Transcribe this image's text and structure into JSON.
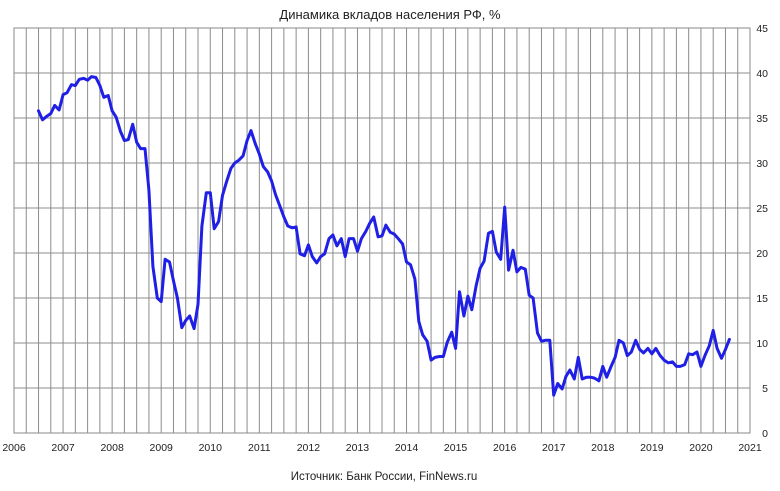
{
  "chart_data": {
    "type": "line",
    "title": "Динамика вкладов населения РФ, %",
    "source": "Источник: Банк России, FinNews.ru",
    "xlabel": "",
    "ylabel": "",
    "xlim": [
      2006,
      2021
    ],
    "ylim": [
      0,
      45
    ],
    "x_ticks": [
      "2006",
      "2007",
      "2008",
      "2009",
      "2010",
      "2011",
      "2012",
      "2013",
      "2014",
      "2015",
      "2016",
      "2017",
      "2018",
      "2019",
      "2020",
      "2021"
    ],
    "y_ticks": [
      "0",
      "5",
      "10",
      "15",
      "20",
      "25",
      "30",
      "35",
      "40",
      "45"
    ],
    "grid": true,
    "line_color": "#1f1fe6",
    "series": [
      {
        "name": "",
        "x": [
          2006.5,
          2006.58,
          2006.67,
          2006.75,
          2006.83,
          2006.92,
          2007.0,
          2007.08,
          2007.17,
          2007.25,
          2007.33,
          2007.42,
          2007.5,
          2007.58,
          2007.67,
          2007.75,
          2007.83,
          2007.92,
          2008.0,
          2008.08,
          2008.17,
          2008.25,
          2008.33,
          2008.42,
          2008.5,
          2008.58,
          2008.67,
          2008.75,
          2008.83,
          2008.92,
          2009.0,
          2009.08,
          2009.17,
          2009.25,
          2009.33,
          2009.42,
          2009.5,
          2009.58,
          2009.67,
          2009.75,
          2009.83,
          2009.92,
          2010.0,
          2010.08,
          2010.17,
          2010.25,
          2010.33,
          2010.42,
          2010.5,
          2010.58,
          2010.67,
          2010.75,
          2010.83,
          2010.92,
          2011.0,
          2011.08,
          2011.17,
          2011.25,
          2011.33,
          2011.42,
          2011.5,
          2011.58,
          2011.67,
          2011.75,
          2011.83,
          2011.92,
          2012.0,
          2012.08,
          2012.17,
          2012.25,
          2012.33,
          2012.42,
          2012.5,
          2012.58,
          2012.67,
          2012.75,
          2012.83,
          2012.92,
          2013.0,
          2013.08,
          2013.17,
          2013.25,
          2013.33,
          2013.42,
          2013.5,
          2013.58,
          2013.67,
          2013.75,
          2013.83,
          2013.92,
          2014.0,
          2014.08,
          2014.17,
          2014.25,
          2014.33,
          2014.42,
          2014.5,
          2014.58,
          2014.67,
          2014.75,
          2014.83,
          2014.92,
          2015.0,
          2015.08,
          2015.17,
          2015.25,
          2015.33,
          2015.42,
          2015.5,
          2015.58,
          2015.67,
          2015.75,
          2015.83,
          2015.92,
          2016.0,
          2016.08,
          2016.17,
          2016.25,
          2016.33,
          2016.42,
          2016.5,
          2016.58,
          2016.67,
          2016.75,
          2016.83,
          2016.92,
          2017.0,
          2017.08,
          2017.17,
          2017.25,
          2017.33,
          2017.42,
          2017.5,
          2017.58,
          2017.67,
          2017.75,
          2017.83,
          2017.92,
          2018.0,
          2018.08,
          2018.17,
          2018.25,
          2018.33,
          2018.42,
          2018.5,
          2018.58,
          2018.67,
          2018.75,
          2018.83,
          2018.92,
          2019.0,
          2019.08,
          2019.17,
          2019.25,
          2019.33,
          2019.42,
          2019.5,
          2019.58,
          2019.67,
          2019.75,
          2019.83,
          2019.92,
          2020.0,
          2020.08,
          2020.17,
          2020.25,
          2020.33,
          2020.42,
          2020.5,
          2020.58
        ],
        "values": [
          35.8,
          34.8,
          35.2,
          35.5,
          36.4,
          35.9,
          37.6,
          37.8,
          38.7,
          38.6,
          39.3,
          39.4,
          39.2,
          39.6,
          39.5,
          38.6,
          37.3,
          37.5,
          35.8,
          35.1,
          33.5,
          32.5,
          32.6,
          34.3,
          32.3,
          31.6,
          31.6,
          27.0,
          18.5,
          15.0,
          14.6,
          19.3,
          19.0,
          16.9,
          15.0,
          11.7,
          12.5,
          13.0,
          11.6,
          14.3,
          23.0,
          26.7,
          26.7,
          22.7,
          23.5,
          26.4,
          27.9,
          29.4,
          30.0,
          30.3,
          30.8,
          32.5,
          33.6,
          32.1,
          31.0,
          29.6,
          29.0,
          28.0,
          26.5,
          25.2,
          24.0,
          23.0,
          22.8,
          22.9,
          19.9,
          19.7,
          20.9,
          19.6,
          18.9,
          19.6,
          19.9,
          21.6,
          22.0,
          20.8,
          21.6,
          19.6,
          21.6,
          21.6,
          20.2,
          21.6,
          22.4,
          23.3,
          24.0,
          21.8,
          21.9,
          23.1,
          22.3,
          22.1,
          21.6,
          21.0,
          19.0,
          18.7,
          17.1,
          12.4,
          10.9,
          10.2,
          8.1,
          8.4,
          8.5,
          8.5,
          10.1,
          11.2,
          9.4,
          15.7,
          13.0,
          15.2,
          13.7,
          16.4,
          18.3,
          19.1,
          22.2,
          22.4,
          20.1,
          19.3,
          25.1,
          18.1,
          20.3,
          17.9,
          18.4,
          18.2,
          15.3,
          15.0,
          11.1,
          10.2,
          10.3,
          10.3,
          4.2,
          5.5,
          4.9,
          6.3,
          7.0,
          6.0,
          8.4,
          6.0,
          6.2,
          6.2,
          6.1,
          5.8,
          7.4,
          6.2,
          7.4,
          8.4,
          10.3,
          10.0,
          8.6,
          9.0,
          10.3,
          9.3,
          8.9,
          9.4,
          8.8,
          9.4,
          8.6,
          8.1,
          7.8,
          7.9,
          7.4,
          7.4,
          7.6,
          8.8,
          8.7,
          9.0,
          7.4,
          8.6,
          9.7,
          11.4,
          9.4,
          8.3,
          9.3,
          10.4
        ]
      }
    ]
  }
}
